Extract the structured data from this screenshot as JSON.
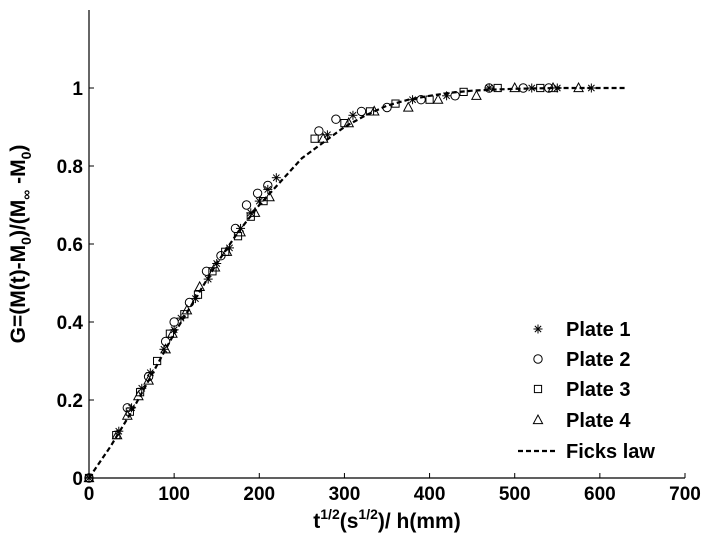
{
  "chart_data": {
    "type": "scatter",
    "xlabel_parts": {
      "t": "t",
      "t_sup": "1/2",
      "s_open": "(s",
      "s_sup": "1/2",
      "rest": ")/ h(mm)"
    },
    "ylabel_parts": {
      "a": "G=(M(t)-M",
      "a_sub": "0",
      "b": ")/(M",
      "b_sub": "∞",
      "c": " -M",
      "c_sub": "0",
      "d": ")"
    },
    "xlim": [
      0,
      700
    ],
    "ylim": [
      0,
      1.2
    ],
    "xticks": [
      0,
      100,
      200,
      300,
      400,
      500,
      600,
      700
    ],
    "yticks": [
      0,
      0.2,
      0.4,
      0.6,
      0.8,
      1
    ],
    "xtick_labels": [
      "0",
      "100",
      "200",
      "300",
      "400",
      "500",
      "600",
      "700"
    ],
    "ytick_labels": [
      "0",
      "0.2",
      "0.4",
      "0.6",
      "0.8",
      "1"
    ],
    "legend_position": "bottom-right",
    "series": [
      {
        "name": "Plate 1",
        "marker": "asterisk",
        "points": [
          [
            0,
            0
          ],
          [
            35,
            0.12
          ],
          [
            50,
            0.18
          ],
          [
            62,
            0.23
          ],
          [
            72,
            0.27
          ],
          [
            88,
            0.33
          ],
          [
            100,
            0.38
          ],
          [
            108,
            0.41
          ],
          [
            125,
            0.46
          ],
          [
            140,
            0.51
          ],
          [
            150,
            0.55
          ],
          [
            165,
            0.59
          ],
          [
            178,
            0.64
          ],
          [
            190,
            0.68
          ],
          [
            200,
            0.71
          ],
          [
            210,
            0.74
          ],
          [
            220,
            0.77
          ],
          [
            280,
            0.88
          ],
          [
            310,
            0.93
          ],
          [
            380,
            0.97
          ],
          [
            420,
            0.98
          ],
          [
            470,
            1.0
          ],
          [
            520,
            1.0
          ],
          [
            550,
            1.0
          ],
          [
            590,
            1.0
          ]
        ]
      },
      {
        "name": "Plate 2",
        "marker": "circle",
        "points": [
          [
            0,
            0
          ],
          [
            45,
            0.18
          ],
          [
            70,
            0.26
          ],
          [
            90,
            0.35
          ],
          [
            100,
            0.4
          ],
          [
            118,
            0.45
          ],
          [
            138,
            0.53
          ],
          [
            155,
            0.57
          ],
          [
            172,
            0.64
          ],
          [
            185,
            0.7
          ],
          [
            198,
            0.73
          ],
          [
            210,
            0.75
          ],
          [
            270,
            0.89
          ],
          [
            290,
            0.92
          ],
          [
            320,
            0.94
          ],
          [
            350,
            0.95
          ],
          [
            390,
            0.97
          ],
          [
            430,
            0.98
          ],
          [
            470,
            1.0
          ],
          [
            510,
            1.0
          ],
          [
            540,
            1.0
          ]
        ]
      },
      {
        "name": "Plate 3",
        "marker": "square",
        "points": [
          [
            0,
            0
          ],
          [
            32,
            0.11
          ],
          [
            48,
            0.17
          ],
          [
            60,
            0.22
          ],
          [
            80,
            0.3
          ],
          [
            95,
            0.37
          ],
          [
            112,
            0.42
          ],
          [
            128,
            0.47
          ],
          [
            145,
            0.53
          ],
          [
            160,
            0.58
          ],
          [
            175,
            0.62
          ],
          [
            190,
            0.67
          ],
          [
            205,
            0.71
          ],
          [
            265,
            0.87
          ],
          [
            300,
            0.91
          ],
          [
            330,
            0.94
          ],
          [
            360,
            0.96
          ],
          [
            400,
            0.97
          ],
          [
            440,
            0.99
          ],
          [
            480,
            1.0
          ],
          [
            530,
            1.0
          ]
        ]
      },
      {
        "name": "Plate 4",
        "marker": "triangle",
        "points": [
          [
            0,
            0
          ],
          [
            33,
            0.11
          ],
          [
            45,
            0.16
          ],
          [
            58,
            0.21
          ],
          [
            70,
            0.25
          ],
          [
            90,
            0.33
          ],
          [
            98,
            0.37
          ],
          [
            115,
            0.43
          ],
          [
            130,
            0.49
          ],
          [
            148,
            0.54
          ],
          [
            162,
            0.58
          ],
          [
            178,
            0.63
          ],
          [
            195,
            0.68
          ],
          [
            212,
            0.72
          ],
          [
            275,
            0.87
          ],
          [
            305,
            0.91
          ],
          [
            335,
            0.94
          ],
          [
            375,
            0.95
          ],
          [
            410,
            0.97
          ],
          [
            455,
            0.98
          ],
          [
            500,
            1.0
          ],
          [
            545,
            1.0
          ],
          [
            575,
            1.0
          ]
        ]
      },
      {
        "name": "Ficks law",
        "marker": "line",
        "points": [
          [
            0,
            0
          ],
          [
            25,
            0.08
          ],
          [
            50,
            0.17
          ],
          [
            75,
            0.27
          ],
          [
            100,
            0.37
          ],
          [
            125,
            0.46
          ],
          [
            150,
            0.55
          ],
          [
            175,
            0.63
          ],
          [
            200,
            0.7
          ],
          [
            225,
            0.76
          ],
          [
            250,
            0.82
          ],
          [
            275,
            0.86
          ],
          [
            300,
            0.9
          ],
          [
            325,
            0.93
          ],
          [
            350,
            0.955
          ],
          [
            375,
            0.97
          ],
          [
            400,
            0.98
          ],
          [
            425,
            0.988
          ],
          [
            450,
            0.993
          ],
          [
            475,
            0.996
          ],
          [
            500,
            0.998
          ],
          [
            525,
            0.999
          ],
          [
            550,
            1.0
          ],
          [
            575,
            1.0
          ],
          [
            600,
            1.0
          ],
          [
            630,
            1.0
          ]
        ]
      }
    ]
  }
}
